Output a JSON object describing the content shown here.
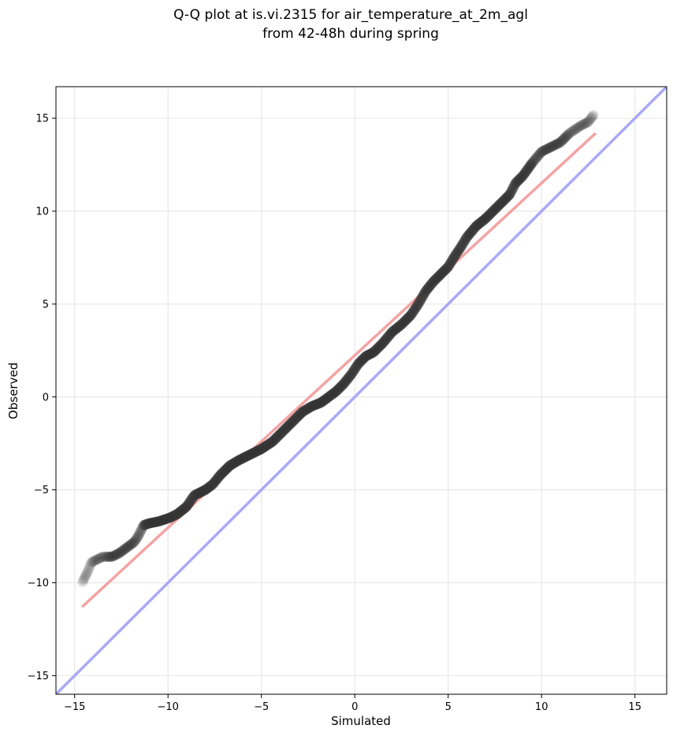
{
  "chart_data": {
    "type": "scatter",
    "title": [
      "Q-Q plot at is.vi.2315 for air_temperature_at_2m_agl",
      "from 42-48h during spring"
    ],
    "xlabel": "Simulated",
    "ylabel": "Observed",
    "xlim": [
      -16,
      16.7
    ],
    "ylim": [
      -16,
      16.7
    ],
    "xticks": [
      -15,
      -10,
      -5,
      0,
      5,
      10,
      15
    ],
    "yticks": [
      -15,
      -10,
      -5,
      0,
      5,
      10,
      15
    ],
    "xtick_labels": [
      "−15",
      "−10",
      "−5",
      "0",
      "5",
      "10",
      "15"
    ],
    "ytick_labels": [
      "−15",
      "−10",
      "−5",
      "0",
      "5",
      "10",
      "15"
    ],
    "grid": true,
    "colors": {
      "points": "#333333",
      "fit_line": "#f4a3a3",
      "identity_line": "#a9a9f7",
      "grid": "#e8e8e8"
    },
    "quantile_curve": [
      [
        -14.6,
        -10.0
      ],
      [
        -14.3,
        -9.4
      ],
      [
        -14.1,
        -8.9
      ],
      [
        -13.5,
        -8.6
      ],
      [
        -13.0,
        -8.6
      ],
      [
        -12.6,
        -8.4
      ],
      [
        -12.2,
        -8.1
      ],
      [
        -11.8,
        -7.8
      ],
      [
        -11.6,
        -7.5
      ],
      [
        -11.3,
        -6.9
      ],
      [
        -11.0,
        -6.8
      ],
      [
        -10.5,
        -6.7
      ],
      [
        -9.9,
        -6.5
      ],
      [
        -9.5,
        -6.3
      ],
      [
        -9.0,
        -5.9
      ],
      [
        -8.6,
        -5.3
      ],
      [
        -8.0,
        -5.0
      ],
      [
        -7.6,
        -4.7
      ],
      [
        -7.2,
        -4.2
      ],
      [
        -6.7,
        -3.7
      ],
      [
        -6.2,
        -3.4
      ],
      [
        -5.6,
        -3.1
      ],
      [
        -5.0,
        -2.8
      ],
      [
        -4.4,
        -2.4
      ],
      [
        -4.0,
        -2.0
      ],
      [
        -3.6,
        -1.6
      ],
      [
        -3.2,
        -1.2
      ],
      [
        -2.8,
        -0.8
      ],
      [
        -2.3,
        -0.5
      ],
      [
        -1.8,
        -0.3
      ],
      [
        -1.4,
        0.0
      ],
      [
        -1.0,
        0.3
      ],
      [
        -0.6,
        0.7
      ],
      [
        -0.2,
        1.2
      ],
      [
        0.2,
        1.8
      ],
      [
        0.6,
        2.2
      ],
      [
        1.0,
        2.4
      ],
      [
        1.5,
        2.9
      ],
      [
        2.0,
        3.5
      ],
      [
        2.5,
        3.9
      ],
      [
        3.0,
        4.4
      ],
      [
        3.4,
        5.0
      ],
      [
        3.8,
        5.7
      ],
      [
        4.2,
        6.2
      ],
      [
        4.6,
        6.6
      ],
      [
        5.0,
        7.0
      ],
      [
        5.3,
        7.5
      ],
      [
        5.7,
        8.1
      ],
      [
        6.0,
        8.6
      ],
      [
        6.5,
        9.2
      ],
      [
        7.0,
        9.6
      ],
      [
        7.5,
        10.1
      ],
      [
        7.9,
        10.5
      ],
      [
        8.3,
        10.9
      ],
      [
        8.6,
        11.5
      ],
      [
        9.0,
        11.9
      ],
      [
        9.5,
        12.6
      ],
      [
        10.0,
        13.2
      ],
      [
        11.0,
        13.7
      ],
      [
        11.5,
        14.2
      ],
      [
        12.1,
        14.6
      ],
      [
        12.5,
        14.8
      ],
      [
        12.8,
        15.2
      ]
    ],
    "fit_line": [
      [
        -14.6,
        -11.3
      ],
      [
        12.9,
        14.2
      ]
    ],
    "identity_line": [
      [
        -16,
        -16
      ],
      [
        16.7,
        16.7
      ]
    ]
  }
}
